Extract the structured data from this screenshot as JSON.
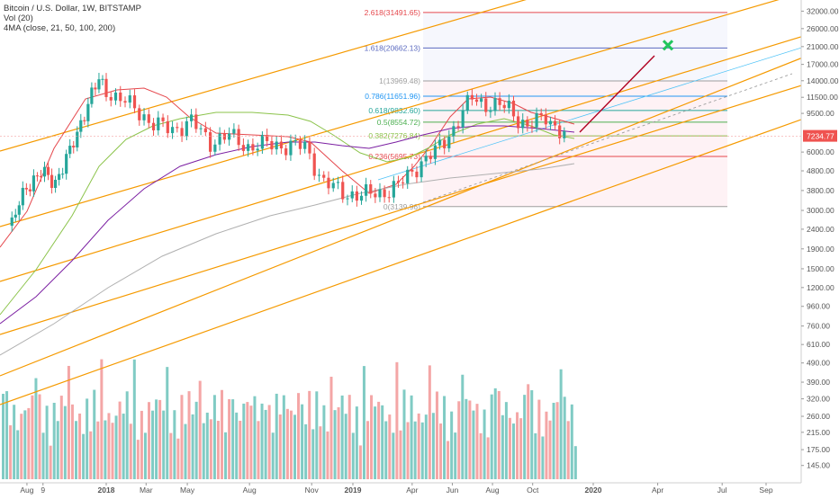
{
  "header": {
    "title": "Bitcoin / U.S. Dollar, 1W, BITSTAMP",
    "vol_label": "Vol (20)",
    "ma_label": "4MA (close, 21, 50, 100, 200)"
  },
  "colors": {
    "up": "#26a69a",
    "down": "#ef5350",
    "vol_up": "#80cbc4",
    "vol_down": "#f4a6a6",
    "channel": "#f59a00",
    "ma21": "#e5484d",
    "ma50": "#8bc34a",
    "ma100": "#7b1fa2",
    "ma200": "#b0b0b0",
    "projection": "#b00020",
    "target": "#22c55e",
    "current_price": "#ef5350"
  },
  "chart_data": {
    "type": "candlestick",
    "symbol": "Bitcoin / U.S. Dollar",
    "interval": "1W",
    "exchange": "BITSTAMP",
    "y_scale": "log",
    "ylim": [
      118,
      35000
    ],
    "x_ticks": [
      "Aug",
      "9",
      "2018",
      "Mar",
      "May",
      "Aug",
      "Nov",
      "2019",
      "Apr",
      "Jun",
      "Aug",
      "Oct",
      "2020",
      "Apr",
      "Jul",
      "Sep"
    ],
    "y_ticks": [
      "32000.00",
      "26000.00",
      "21000.00",
      "17000.00",
      "14000.00",
      "11500.00",
      "9500.00",
      "7234.77",
      "6000.00",
      "4800.00",
      "3800.00",
      "3000.00",
      "2400.00",
      "1900.00",
      "1500.00",
      "1200.00",
      "960.00",
      "760.00",
      "610.00",
      "490.00",
      "390.00",
      "320.00",
      "260.00",
      "215.00",
      "175.00",
      "145.00"
    ],
    "current_price": "7234.77",
    "fib_levels": [
      {
        "label": "2.618(31491.65)",
        "price": 31491.65,
        "color": "#e5484d"
      },
      {
        "label": "1.618(20662.13)",
        "price": 20662.13,
        "color": "#5c6bc0"
      },
      {
        "label": "1(13969.48)",
        "price": 13969.48,
        "color": "#9e9e9e"
      },
      {
        "label": "0.786(11651.96)",
        "price": 11651.96,
        "color": "#2196f3"
      },
      {
        "label": "0.618(9832.60)",
        "price": 9832.6,
        "color": "#26a69a"
      },
      {
        "label": "0.5(8554.72)",
        "price": 8554.72,
        "color": "#4caf50"
      },
      {
        "label": "0.382(7276.84)",
        "price": 7276.84,
        "color": "#8bc34a"
      },
      {
        "label": "0.236(5695.73)",
        "price": 5695.73,
        "color": "#e5484d"
      },
      {
        "label": "0(3139.96)",
        "price": 3139.96,
        "color": "#9e9e9e"
      }
    ],
    "series": [
      {
        "type": "candles",
        "x": [
          "2017-07-03",
          "2017-07-31",
          "2017-08-28",
          "2017-09-25",
          "2017-10-23",
          "2017-11-20",
          "2017-12-18",
          "2018-01-15",
          "2018-02-12",
          "2018-03-12",
          "2018-04-09",
          "2018-05-07",
          "2018-06-04",
          "2018-07-02",
          "2018-07-30",
          "2018-08-27",
          "2018-09-24",
          "2018-10-22",
          "2018-11-19",
          "2018-12-17",
          "2019-01-14",
          "2019-02-11",
          "2019-03-11",
          "2019-04-08",
          "2019-05-06",
          "2019-06-03",
          "2019-07-01",
          "2019-07-29",
          "2019-08-26",
          "2019-09-23",
          "2019-10-21",
          "2019-11-18"
        ],
        "close": [
          2500,
          4100,
          4600,
          4300,
          5900,
          9800,
          14000,
          11500,
          10200,
          8300,
          7900,
          8600,
          6800,
          7300,
          6400,
          6600,
          6500,
          6400,
          4200,
          3700,
          3600,
          3700,
          4000,
          5100,
          6000,
          8000,
          11500,
          10400,
          10200,
          8000,
          9300,
          7234.77
        ]
      }
    ],
    "annotations": [
      "target marker near 20662"
    ]
  }
}
